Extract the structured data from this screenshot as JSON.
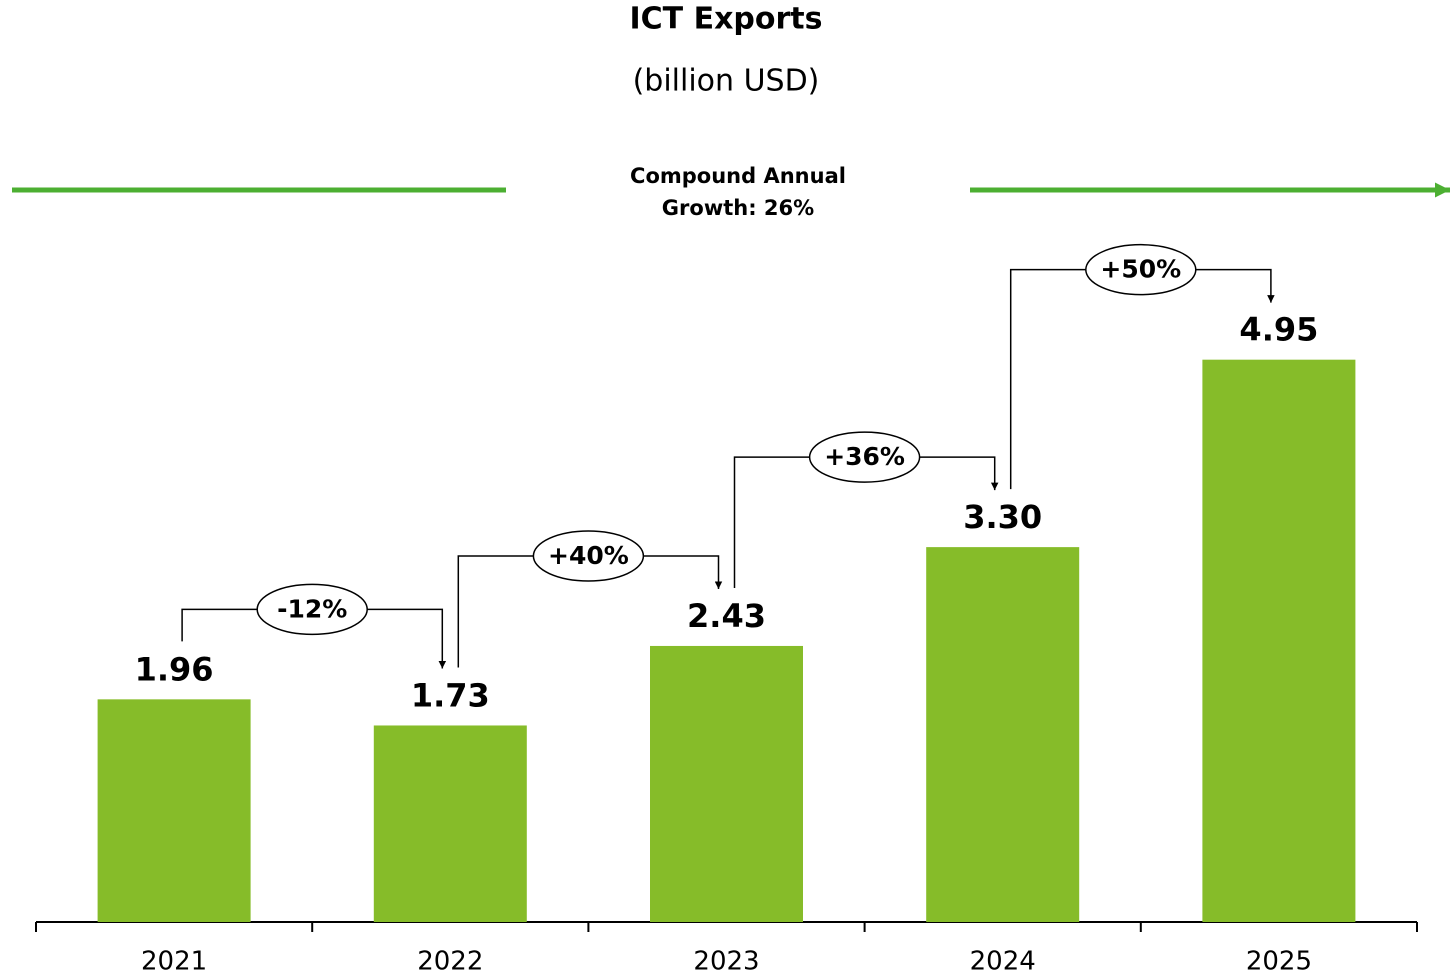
{
  "chart_data": {
    "type": "bar",
    "title": "ICT Exports",
    "subtitle": "(billion USD)",
    "annotation": "Compound Annual Growth: 26%",
    "categories": [
      "2021",
      "2022",
      "2023",
      "2024",
      "2025"
    ],
    "values": [
      1.96,
      1.73,
      2.43,
      3.3,
      4.95
    ],
    "value_labels": [
      "1.96",
      "1.73",
      "2.43",
      "3.30",
      "4.95"
    ],
    "color": "#86bc29",
    "ylim": [
      0,
      5
    ],
    "changes": {
      "values": [
        -12,
        40,
        36,
        50
      ],
      "value_labels": [
        "-12%",
        "+40%",
        "+36%",
        "+50%"
      ]
    }
  }
}
